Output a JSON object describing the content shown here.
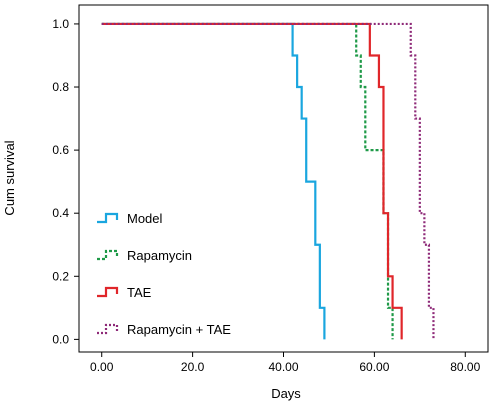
{
  "chart_data": {
    "type": "line",
    "subtype": "step (Kaplan-Meier survival)",
    "title": "",
    "xlabel": "Days",
    "ylabel": "Cum survival",
    "xlim": [
      -5,
      85
    ],
    "ylim": [
      -0.04,
      1.06
    ],
    "x_ticks": [
      0,
      20,
      40,
      60,
      80
    ],
    "x_tick_labels": [
      "0.00",
      "20.0",
      "40.00",
      "60.00",
      "80.00"
    ],
    "y_ticks": [
      0,
      0.2,
      0.4,
      0.6,
      0.8,
      1.0
    ],
    "y_tick_labels": [
      "0.0",
      "0.2",
      "0.4",
      "0.6",
      "0.8",
      "1.0"
    ],
    "grid": false,
    "legend_placement": "bottom-left",
    "series": [
      {
        "name": "Model",
        "color": "#1aa6df",
        "dash": "solid",
        "x": [
          0,
          42,
          43,
          44,
          45,
          47,
          48,
          49
        ],
        "y": [
          1.0,
          0.9,
          0.8,
          0.7,
          0.5,
          0.3,
          0.1,
          0.0
        ]
      },
      {
        "name": "Rapamycin",
        "color": "#1f9a48",
        "dash": "dashed",
        "x": [
          0,
          56,
          57,
          58,
          62,
          63,
          64
        ],
        "y": [
          1.0,
          0.9,
          0.8,
          0.6,
          0.4,
          0.1,
          0.0
        ]
      },
      {
        "name": "TAE",
        "color": "#e0262a",
        "dash": "solid",
        "x": [
          0,
          59,
          61,
          62,
          63,
          64,
          66
        ],
        "y": [
          1.0,
          0.9,
          0.8,
          0.4,
          0.2,
          0.1,
          0.0
        ]
      },
      {
        "name": "Rapamycin + TAE",
        "color": "#8e2a78",
        "dash": "dotted",
        "x": [
          0,
          68,
          69,
          70,
          71,
          72,
          73
        ],
        "y": [
          1.0,
          0.9,
          0.7,
          0.4,
          0.3,
          0.1,
          0.0
        ]
      }
    ]
  }
}
